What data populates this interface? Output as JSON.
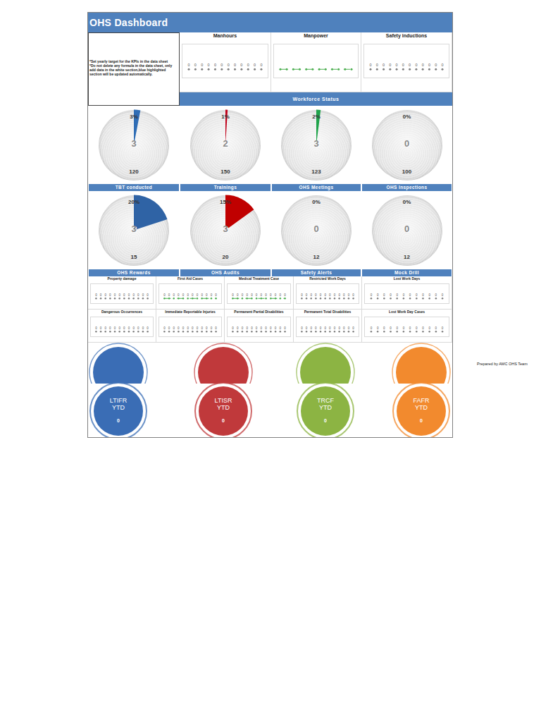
{
  "dashboard": {
    "title": "OHS Dashboard",
    "note": [
      "*Set yearly target for the KPIs in the data sheet",
      "*Do not delete any formula in the data sheet, only add data in the white section,blue highlighted section will be updated automatically."
    ],
    "section": "Workforce Status",
    "credit": "Prepared by AMC OHS Team"
  },
  "chart_data": [
    {
      "type": "line",
      "title": "Manhours",
      "categories": [
        null,
        null,
        null,
        null,
        null,
        null,
        null,
        null,
        null,
        null,
        null,
        null
      ],
      "values": [
        0,
        0,
        0,
        0,
        0,
        0,
        0,
        0,
        0,
        0,
        0,
        0
      ],
      "color": "#7f7f7f",
      "line_style": "none",
      "marker": "circle",
      "data_labels": true,
      "tick_labels": false,
      "ylim": [
        -0.5,
        1.5
      ]
    },
    {
      "type": "line",
      "title": "Manpower",
      "categories": [
        null,
        null,
        null,
        null,
        null,
        null,
        null,
        null,
        null,
        null,
        null,
        null
      ],
      "values": [
        0,
        0,
        0,
        0,
        0,
        0,
        0,
        0,
        0,
        0,
        0,
        0
      ],
      "color": "#4caf50",
      "line_style": "dashed",
      "marker": "circle",
      "data_labels": false,
      "tick_labels": false,
      "ylim": [
        -0.5,
        1.5
      ]
    },
    {
      "type": "line",
      "title": "Safety inductions",
      "categories": [
        null,
        null,
        null,
        null,
        null,
        null,
        null,
        null,
        null,
        null,
        null,
        null
      ],
      "values": [
        0,
        0,
        0,
        0,
        0,
        0,
        0,
        0,
        0,
        0,
        0,
        0
      ],
      "color": "#7f7f7f",
      "line_style": "none",
      "marker": "circle",
      "data_labels": true,
      "tick_labels": false,
      "ylim": [
        -0.5,
        1.5
      ]
    },
    {
      "type": "gauge",
      "title": "TBT conducted",
      "percent": 3,
      "percent_label": "3%",
      "value": 3,
      "target": 120,
      "ylim": [
        0,
        100
      ],
      "color": "#2f6db5"
    },
    {
      "type": "gauge",
      "title": "Trainings",
      "percent": 1,
      "percent_label": "1%",
      "value": 2,
      "target": 150,
      "ylim": [
        0,
        100
      ],
      "color": "#c0001a"
    },
    {
      "type": "gauge",
      "title": "OHS Meetings",
      "percent": 2,
      "percent_label": "2%",
      "value": 3,
      "target": 123,
      "ylim": [
        0,
        100
      ],
      "color": "#1fa34a"
    },
    {
      "type": "gauge",
      "title": "OHS Inspections",
      "percent": 0,
      "percent_label": "0%",
      "value": 0,
      "target": 100,
      "ylim": [
        0,
        100
      ]
    },
    {
      "type": "gauge",
      "title": "OHS Rewards",
      "percent": 20,
      "percent_label": "20%",
      "value": 3,
      "target": 15,
      "ylim": [
        0,
        100
      ],
      "color": "#2f63a5"
    },
    {
      "type": "gauge",
      "title": "OHS Audits",
      "percent": 15,
      "percent_label": "15%",
      "value": 3,
      "target": 20,
      "ylim": [
        0,
        100
      ],
      "color": "#c00000"
    },
    {
      "type": "gauge",
      "title": "Safety Alerts",
      "percent": 0,
      "percent_label": "0%",
      "value": 0,
      "target": 12,
      "ylim": [
        0,
        100
      ]
    },
    {
      "type": "gauge",
      "title": "Mock Drill",
      "percent": 0,
      "percent_label": "0%",
      "value": 0,
      "target": 12,
      "ylim": [
        0,
        100
      ]
    },
    {
      "type": "line",
      "title": "Property damage",
      "categories": [
        null,
        null,
        null,
        null,
        null,
        null,
        null,
        null,
        null,
        null,
        null,
        null
      ],
      "values": [
        0,
        0,
        0,
        0,
        0,
        0,
        0,
        0,
        0,
        0,
        0,
        0
      ],
      "color": "#7f7f7f",
      "line_style": "none",
      "marker": "circle",
      "data_labels": true,
      "tick_labels": false,
      "ylim": [
        -0.5,
        1.5
      ]
    },
    {
      "type": "line",
      "title": "First Aid Cases",
      "categories": [
        null,
        null,
        null,
        null,
        null,
        null,
        null,
        null,
        null,
        null,
        null,
        null
      ],
      "values": [
        0,
        0,
        0,
        0,
        0,
        0,
        0,
        0,
        0,
        0,
        0,
        0
      ],
      "color": "#4caf50",
      "line_style": "dashed",
      "marker": "circle",
      "data_labels": true,
      "tick_labels": false,
      "ylim": [
        -0.5,
        1.5
      ]
    },
    {
      "type": "line",
      "title": "Medical Treatment Case",
      "categories": [
        null,
        null,
        null,
        null,
        null,
        null,
        null,
        null,
        null,
        null,
        null,
        null
      ],
      "values": [
        0,
        0,
        0,
        0,
        0,
        0,
        0,
        0,
        0,
        0,
        0,
        0
      ],
      "color": "#4caf50",
      "line_style": "dashed",
      "marker": "circle",
      "data_labels": true,
      "tick_labels": false,
      "ylim": [
        -0.5,
        1.5
      ]
    },
    {
      "type": "line",
      "title": "Restricted Work Days",
      "categories": [
        null,
        null,
        null,
        null,
        null,
        null,
        null,
        null,
        null,
        null,
        null,
        null
      ],
      "values": [
        0,
        0,
        0,
        0,
        0,
        0,
        0,
        0,
        0,
        0,
        0,
        0
      ],
      "color": "#7f7f7f",
      "line_style": "none",
      "marker": "circle",
      "data_labels": true,
      "tick_labels": false,
      "ylim": [
        -0.5,
        1.5
      ]
    },
    {
      "type": "line",
      "title": "Lost Work Days",
      "categories": [
        null,
        null,
        null,
        null,
        null,
        null,
        null,
        null,
        null,
        null,
        null,
        null
      ],
      "values": [
        0,
        0,
        0,
        0,
        0,
        0,
        0,
        0,
        0,
        0,
        0,
        0
      ],
      "color": "#7f7f7f",
      "line_style": "none",
      "marker": "circle",
      "data_labels": true,
      "tick_labels": false,
      "ylim": [
        -0.5,
        1.5
      ]
    },
    {
      "type": "line",
      "title": "Dangerous Occurrences",
      "categories": [
        null,
        null,
        null,
        null,
        null,
        null,
        null,
        null,
        null,
        null,
        null,
        null
      ],
      "values": [
        0,
        0,
        0,
        0,
        0,
        0,
        0,
        0,
        0,
        0,
        0,
        0
      ],
      "color": "#7f7f7f",
      "line_style": "none",
      "marker": "circle",
      "data_labels": true,
      "tick_labels": false,
      "ylim": [
        -0.5,
        1.5
      ]
    },
    {
      "type": "line",
      "title": "Immediate Reportable Injuries",
      "categories": [
        null,
        null,
        null,
        null,
        null,
        null,
        null,
        null,
        null,
        null,
        null,
        null
      ],
      "values": [
        0,
        0,
        0,
        0,
        0,
        0,
        0,
        0,
        0,
        0,
        0,
        0
      ],
      "color": "#7f7f7f",
      "line_style": "none",
      "marker": "circle",
      "data_labels": true,
      "tick_labels": false,
      "ylim": [
        -0.5,
        1.5
      ]
    },
    {
      "type": "line",
      "title": "Permanent Partial Disabilities",
      "categories": [
        null,
        null,
        null,
        null,
        null,
        null,
        null,
        null,
        null,
        null,
        null,
        null
      ],
      "values": [
        0,
        0,
        0,
        0,
        0,
        0,
        0,
        0,
        0,
        0,
        0,
        0
      ],
      "color": "#7f7f7f",
      "line_style": "none",
      "marker": "circle",
      "data_labels": true,
      "tick_labels": false,
      "ylim": [
        -0.5,
        1.5
      ]
    },
    {
      "type": "line",
      "title": "Permanent Total Disabilities",
      "categories": [
        null,
        null,
        null,
        null,
        null,
        null,
        null,
        null,
        null,
        null,
        null,
        null
      ],
      "values": [
        0,
        0,
        0,
        0,
        0,
        0,
        0,
        0,
        0,
        0,
        0,
        0
      ],
      "color": "#7f7f7f",
      "line_style": "none",
      "marker": "circle",
      "data_labels": true,
      "tick_labels": false,
      "ylim": [
        -0.5,
        1.5
      ]
    },
    {
      "type": "line",
      "title": "Lost Work Day Cases",
      "categories": [
        null,
        null,
        null,
        null,
        null,
        null,
        null,
        null,
        null,
        null,
        null,
        null
      ],
      "values": [
        0,
        0,
        0,
        0,
        0,
        0,
        0,
        0,
        0,
        0,
        0,
        0
      ],
      "color": "#7f7f7f",
      "line_style": "none",
      "marker": "circle",
      "data_labels": true,
      "tick_labels": false,
      "ylim": [
        -0.5,
        1.5
      ]
    }
  ],
  "kpis": [
    {
      "name": "LTIFR",
      "period": "YTD",
      "value": 0,
      "color": "#3a6db5"
    },
    {
      "name": "LTISR",
      "period": "YTD",
      "value": 0,
      "color": "#c0393b"
    },
    {
      "name": "TRCF",
      "period": "YTD",
      "value": 0,
      "color": "#8cb443"
    },
    {
      "name": "FAFR",
      "period": "YTD",
      "value": 0,
      "color": "#f28a2e"
    }
  ]
}
